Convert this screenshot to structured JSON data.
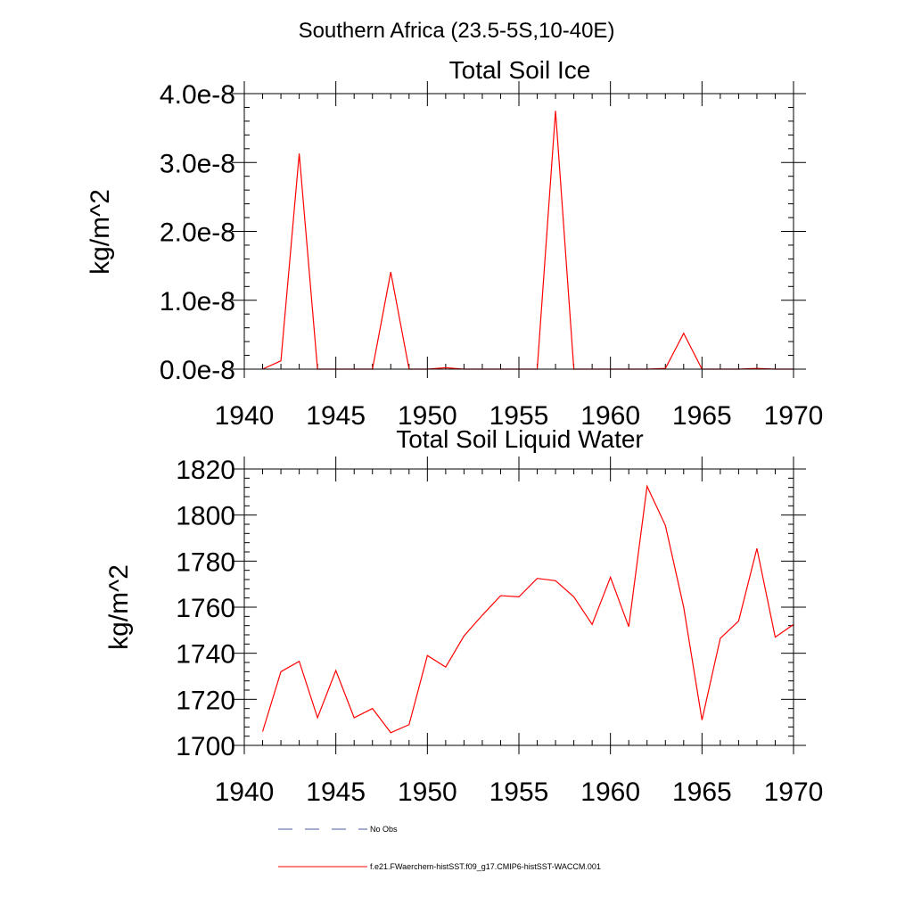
{
  "figure": {
    "title": "Southern Africa (23.5-5S,10-40E)"
  },
  "chart_data": [
    {
      "type": "line",
      "title": "Total Soil Ice",
      "ylabel": "kg/m^2",
      "xlim": [
        1940,
        1970
      ],
      "ylim": [
        0,
        4e-08
      ],
      "xticks": [
        "1940",
        "1945",
        "1950",
        "1955",
        "1960",
        "1965",
        "1970"
      ],
      "yticks": [
        "0.0e-8",
        "1.0e-8",
        "2.0e-8",
        "3.0e-8",
        "4.0e-8"
      ],
      "series": [
        {
          "name": "f.e21.FWaerchem-histSST.f09_g17.CMIP6-histSST-WACCM.001",
          "color": "#ff0000",
          "x": [
            1941,
            1942,
            1943,
            1944,
            1945,
            1946,
            1947,
            1948,
            1949,
            1950,
            1951,
            1952,
            1953,
            1954,
            1955,
            1956,
            1957,
            1958,
            1959,
            1960,
            1961,
            1962,
            1963,
            1964,
            1965,
            1966,
            1967,
            1968,
            1969,
            1970
          ],
          "y": [
            0,
            1.2e-09,
            3.13e-08,
            0,
            0,
            0,
            0,
            1.41e-08,
            0,
            0,
            2e-10,
            0,
            0,
            0,
            0,
            0,
            3.75e-08,
            0,
            0,
            0,
            0,
            0,
            1e-10,
            5.2e-09,
            0,
            0,
            0,
            1e-10,
            0,
            0
          ]
        }
      ]
    },
    {
      "type": "line",
      "title": "Total Soil Liquid Water",
      "ylabel": "kg/m^2",
      "xlim": [
        1940,
        1970
      ],
      "ylim": [
        1700,
        1820
      ],
      "xticks": [
        "1940",
        "1945",
        "1950",
        "1955",
        "1960",
        "1965",
        "1970"
      ],
      "yticks": [
        "1700",
        "1720",
        "1740",
        "1760",
        "1780",
        "1800",
        "1820"
      ],
      "series": [
        {
          "name": "f.e21.FWaerchem-histSST.f09_g17.CMIP6-histSST-WACCM.001",
          "color": "#ff0000",
          "x": [
            1941,
            1942,
            1943,
            1944,
            1945,
            1946,
            1947,
            1948,
            1949,
            1950,
            1951,
            1952,
            1953,
            1954,
            1955,
            1956,
            1957,
            1958,
            1959,
            1960,
            1961,
            1962,
            1963,
            1964,
            1965,
            1966,
            1967,
            1968,
            1969,
            1970
          ],
          "y": [
            1706,
            1732,
            1736.5,
            1712,
            1732.5,
            1712,
            1716,
            1705.5,
            1709,
            1739,
            1734,
            1747.5,
            1756.5,
            1765,
            1764.5,
            1772.5,
            1771.5,
            1764.5,
            1752.5,
            1773,
            1751.5,
            1812.5,
            1795.5,
            1760,
            1711,
            1746.5,
            1754,
            1785.5,
            1747,
            1752.5
          ]
        }
      ]
    }
  ],
  "legend": {
    "entries": [
      {
        "label": "No Obs",
        "style": "dashed",
        "color": "#4a5aa0"
      },
      {
        "label": "f.e21.FWaerchem-histSST.f09_g17.CMIP6-histSST-WACCM.001",
        "style": "solid",
        "color": "#ff0000"
      }
    ]
  }
}
